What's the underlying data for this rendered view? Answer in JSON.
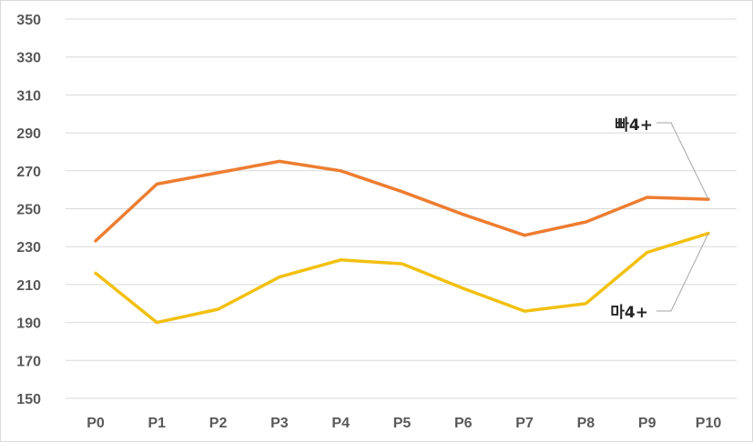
{
  "chart_data": {
    "type": "line",
    "title": "",
    "xlabel": "",
    "ylabel": "",
    "x": [
      "P0",
      "P1",
      "P2",
      "P3",
      "P4",
      "P5",
      "P6",
      "P7",
      "P8",
      "P9",
      "P10"
    ],
    "ylim": [
      150,
      350
    ],
    "yticks": [
      150,
      170,
      190,
      210,
      230,
      250,
      270,
      290,
      310,
      330,
      350
    ],
    "grid": true,
    "legend": "none",
    "series": [
      {
        "name": "빠4+",
        "color": "#ED7D31",
        "values": [
          233,
          263,
          269,
          275,
          270,
          259,
          247,
          236,
          243,
          256,
          255
        ]
      },
      {
        "name": "마4+",
        "color": "#F2C012",
        "values": [
          216,
          190,
          197,
          214,
          223,
          221,
          208,
          196,
          200,
          227,
          237
        ]
      }
    ]
  }
}
